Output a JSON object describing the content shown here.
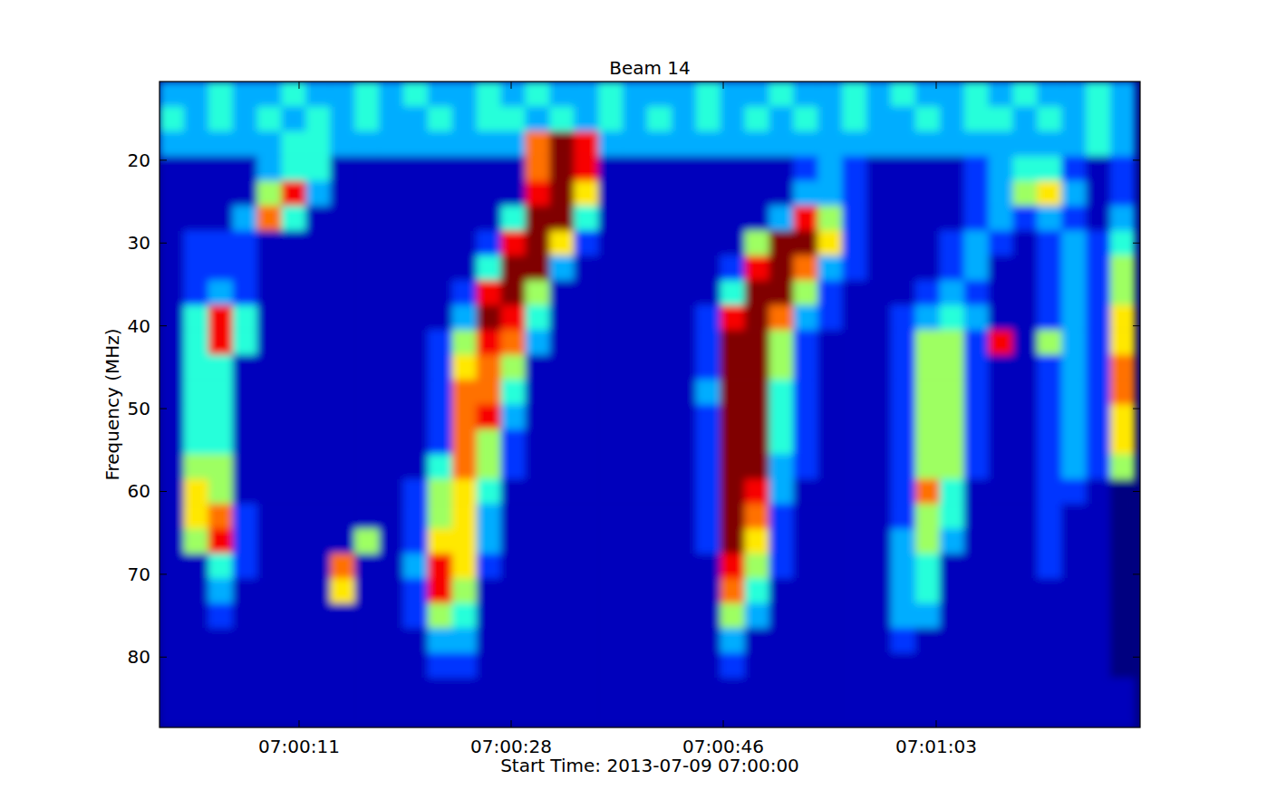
{
  "chart_data": {
    "type": "heatmap",
    "title": "Beam 14",
    "xlabel": "Start Time: 2013-07-09 07:00:00",
    "ylabel": "Frequency (MHz)",
    "xlim": [
      0,
      80.45
    ],
    "ylim": [
      88.5,
      10.5
    ],
    "xticks": [
      {
        "value": 11.45,
        "label": "07:00:11"
      },
      {
        "value": 28.85,
        "label": "07:00:28"
      },
      {
        "value": 46.25,
        "label": "07:00:46"
      },
      {
        "value": 63.72,
        "label": "07:01:03"
      }
    ],
    "yticks": [
      20,
      30,
      40,
      50,
      60,
      70,
      80
    ],
    "zlim": [
      0.5,
      9
    ],
    "x_bins": [
      0,
      2,
      4,
      6,
      8,
      10,
      12,
      14,
      16,
      18,
      20,
      22,
      24,
      26,
      28,
      30,
      32,
      34,
      36,
      38,
      40,
      42,
      44,
      46,
      48,
      50,
      52,
      54,
      56,
      58,
      60,
      62,
      64,
      66,
      68,
      70,
      72,
      74,
      76,
      78,
      80
    ],
    "y_bins": [
      10.5,
      13.5,
      16.5,
      19.5,
      22.5,
      25.5,
      28.5,
      31.5,
      34.5,
      37.5,
      40.5,
      43.5,
      46.5,
      49.5,
      52.5,
      55.5,
      58.5,
      61.5,
      64.5,
      67.5,
      70.5,
      73.5,
      76.5,
      79.5,
      82.5,
      85.5,
      88.5
    ],
    "values": [
      [
        3,
        3,
        4,
        3,
        3,
        4,
        3,
        3,
        4,
        3,
        4,
        3,
        3,
        4,
        3,
        4,
        3,
        3,
        4,
        3,
        3,
        3,
        4,
        3,
        3,
        4,
        3,
        3,
        4,
        3,
        4,
        3,
        3,
        4,
        3,
        4,
        3,
        3,
        4,
        3
      ],
      [
        4,
        3,
        4,
        3,
        4,
        3,
        4,
        3,
        4,
        3,
        3,
        4,
        3,
        4,
        4,
        3,
        4,
        3,
        4,
        3,
        4,
        3,
        4,
        3,
        4,
        3,
        4,
        3,
        4,
        3,
        3,
        4,
        3,
        4,
        4,
        3,
        4,
        3,
        4,
        3
      ],
      [
        3,
        3,
        3,
        3,
        3,
        4,
        4,
        3,
        3,
        3,
        3,
        3,
        3,
        3,
        3,
        7,
        9,
        8,
        3,
        3,
        3,
        3,
        3,
        3,
        3,
        3,
        3,
        3,
        3,
        3,
        3,
        3,
        3,
        3,
        3,
        3,
        3,
        3,
        4,
        3
      ],
      [
        1,
        1,
        1,
        1,
        3,
        4,
        4,
        1,
        1,
        1,
        1,
        1,
        1,
        1,
        1,
        7,
        9,
        8,
        1,
        1,
        1,
        1,
        1,
        1,
        1,
        1,
        2,
        3,
        2,
        1,
        1,
        1,
        1,
        2,
        3,
        4,
        4,
        2,
        1,
        2
      ],
      [
        1,
        1,
        1,
        1,
        5,
        8,
        3,
        1,
        1,
        1,
        1,
        1,
        1,
        1,
        1,
        8,
        9,
        6,
        1,
        1,
        1,
        1,
        1,
        1,
        1,
        1,
        3,
        3,
        2,
        1,
        1,
        1,
        1,
        2,
        3,
        5,
        6,
        3,
        1,
        2
      ],
      [
        1,
        1,
        1,
        3,
        7,
        4,
        1,
        1,
        1,
        1,
        1,
        1,
        1,
        1,
        4,
        9,
        9,
        4,
        1,
        1,
        1,
        1,
        1,
        1,
        1,
        3,
        8,
        5,
        2,
        1,
        1,
        1,
        1,
        2,
        3,
        2,
        3,
        2,
        1,
        3
      ],
      [
        1,
        2,
        2,
        2,
        1,
        1,
        1,
        1,
        1,
        1,
        1,
        1,
        1,
        2,
        8,
        9,
        6,
        2,
        1,
        1,
        1,
        1,
        1,
        1,
        5,
        9,
        9,
        6,
        2,
        1,
        1,
        1,
        2,
        3,
        2,
        1,
        2,
        3,
        2,
        4
      ],
      [
        1,
        2,
        2,
        2,
        1,
        1,
        1,
        1,
        1,
        1,
        1,
        1,
        1,
        4,
        9,
        9,
        3,
        1,
        1,
        1,
        1,
        1,
        1,
        2,
        8,
        9,
        7,
        3,
        2,
        1,
        1,
        1,
        2,
        3,
        1,
        1,
        2,
        3,
        2,
        5
      ],
      [
        1,
        2,
        3,
        2,
        1,
        1,
        1,
        1,
        1,
        1,
        1,
        1,
        2,
        8,
        9,
        5,
        1,
        1,
        1,
        1,
        1,
        1,
        1,
        4,
        9,
        9,
        5,
        2,
        1,
        1,
        1,
        2,
        3,
        2,
        1,
        1,
        2,
        3,
        2,
        5
      ],
      [
        1,
        4,
        8,
        4,
        1,
        1,
        1,
        1,
        1,
        1,
        1,
        1,
        3,
        9,
        8,
        4,
        1,
        1,
        1,
        1,
        1,
        1,
        2,
        8,
        9,
        7,
        3,
        2,
        1,
        1,
        2,
        3,
        4,
        3,
        1,
        1,
        2,
        3,
        2,
        6
      ],
      [
        1,
        4,
        8,
        4,
        1,
        1,
        1,
        1,
        1,
        1,
        1,
        2,
        5,
        8,
        7,
        3,
        1,
        1,
        1,
        1,
        1,
        1,
        2,
        9,
        9,
        5,
        2,
        1,
        1,
        1,
        2,
        5,
        5,
        2,
        8,
        1,
        5,
        3,
        2,
        6
      ],
      [
        1,
        4,
        4,
        1,
        1,
        1,
        1,
        1,
        1,
        1,
        1,
        2,
        6,
        7,
        5,
        1,
        1,
        1,
        1,
        1,
        1,
        1,
        2,
        9,
        9,
        5,
        2,
        1,
        1,
        1,
        2,
        5,
        5,
        2,
        1,
        1,
        2,
        3,
        2,
        7
      ],
      [
        1,
        4,
        4,
        1,
        1,
        1,
        1,
        1,
        1,
        1,
        1,
        2,
        7,
        7,
        4,
        1,
        1,
        1,
        1,
        1,
        1,
        1,
        3,
        9,
        9,
        4,
        2,
        1,
        1,
        1,
        2,
        5,
        5,
        2,
        1,
        1,
        2,
        3,
        2,
        7
      ],
      [
        1,
        4,
        4,
        1,
        1,
        1,
        1,
        1,
        1,
        1,
        1,
        2,
        7,
        8,
        3,
        1,
        1,
        1,
        1,
        1,
        1,
        1,
        2,
        9,
        9,
        4,
        2,
        1,
        1,
        1,
        2,
        5,
        5,
        2,
        1,
        1,
        2,
        3,
        2,
        6
      ],
      [
        1,
        4,
        4,
        1,
        1,
        1,
        1,
        1,
        1,
        1,
        1,
        2,
        7,
        5,
        2,
        1,
        1,
        1,
        1,
        1,
        1,
        1,
        2,
        9,
        9,
        4,
        2,
        1,
        1,
        1,
        2,
        5,
        5,
        2,
        1,
        1,
        2,
        3,
        2,
        6
      ],
      [
        1,
        5,
        5,
        1,
        1,
        1,
        1,
        1,
        1,
        1,
        1,
        4,
        7,
        5,
        2,
        1,
        1,
        1,
        1,
        1,
        1,
        1,
        2,
        9,
        9,
        3,
        2,
        1,
        1,
        1,
        2,
        5,
        5,
        2,
        1,
        1,
        2,
        3,
        2,
        5
      ],
      [
        1,
        6,
        5,
        1,
        1,
        1,
        1,
        1,
        1,
        1,
        2,
        5,
        6,
        4,
        1,
        1,
        1,
        1,
        1,
        1,
        1,
        1,
        2,
        9,
        8,
        3,
        1,
        1,
        1,
        1,
        2,
        7,
        4,
        1,
        1,
        1,
        2,
        2,
        1,
        0
      ],
      [
        1,
        6,
        7,
        2,
        1,
        1,
        1,
        1,
        1,
        1,
        2,
        5,
        6,
        3,
        1,
        1,
        1,
        1,
        1,
        1,
        1,
        1,
        2,
        9,
        7,
        2,
        1,
        1,
        1,
        1,
        2,
        5,
        4,
        1,
        1,
        1,
        2,
        1,
        1,
        0
      ],
      [
        1,
        5,
        8,
        2,
        1,
        1,
        1,
        1,
        5,
        1,
        2,
        6,
        6,
        3,
        1,
        1,
        1,
        1,
        1,
        1,
        1,
        1,
        2,
        9,
        6,
        2,
        1,
        1,
        1,
        1,
        3,
        5,
        3,
        1,
        1,
        1,
        2,
        1,
        1,
        0
      ],
      [
        1,
        1,
        4,
        2,
        1,
        1,
        1,
        7,
        1,
        1,
        3,
        8,
        6,
        2,
        1,
        1,
        1,
        1,
        1,
        1,
        1,
        1,
        1,
        8,
        5,
        2,
        1,
        1,
        1,
        1,
        3,
        4,
        1,
        1,
        1,
        1,
        2,
        1,
        1,
        0
      ],
      [
        1,
        1,
        3,
        1,
        1,
        1,
        1,
        6,
        1,
        1,
        2,
        8,
        5,
        1,
        1,
        1,
        1,
        1,
        1,
        1,
        1,
        1,
        1,
        7,
        4,
        1,
        1,
        1,
        1,
        1,
        3,
        4,
        1,
        1,
        1,
        1,
        1,
        1,
        1,
        0
      ],
      [
        1,
        1,
        2,
        1,
        1,
        1,
        1,
        1,
        1,
        1,
        2,
        5,
        4,
        1,
        1,
        1,
        1,
        1,
        1,
        1,
        1,
        1,
        1,
        5,
        3,
        1,
        1,
        1,
        1,
        1,
        3,
        3,
        1,
        1,
        1,
        1,
        1,
        1,
        1,
        0
      ],
      [
        1,
        1,
        1,
        1,
        1,
        1,
        1,
        1,
        1,
        1,
        1,
        3,
        3,
        1,
        1,
        1,
        1,
        1,
        1,
        1,
        1,
        1,
        1,
        3,
        1,
        1,
        1,
        1,
        1,
        1,
        2,
        1,
        1,
        1,
        1,
        1,
        1,
        1,
        1,
        0
      ],
      [
        1,
        1,
        1,
        1,
        1,
        1,
        1,
        1,
        1,
        1,
        1,
        2,
        2,
        1,
        1,
        1,
        1,
        1,
        1,
        1,
        1,
        1,
        1,
        2,
        1,
        1,
        1,
        1,
        1,
        1,
        1,
        1,
        1,
        1,
        1,
        1,
        1,
        1,
        1,
        0
      ],
      [
        1,
        1,
        1,
        1,
        1,
        1,
        1,
        1,
        1,
        1,
        1,
        1,
        1,
        1,
        1,
        1,
        1,
        1,
        1,
        1,
        1,
        1,
        1,
        1,
        1,
        1,
        1,
        1,
        1,
        1,
        1,
        1,
        1,
        1,
        1,
        1,
        1,
        1,
        1,
        1
      ],
      [
        1,
        1,
        1,
        1,
        1,
        1,
        1,
        1,
        1,
        1,
        1,
        1,
        1,
        1,
        1,
        1,
        1,
        1,
        1,
        1,
        1,
        1,
        1,
        1,
        1,
        1,
        1,
        1,
        1,
        1,
        1,
        1,
        1,
        1,
        1,
        1,
        1,
        1,
        1,
        1
      ]
    ]
  }
}
